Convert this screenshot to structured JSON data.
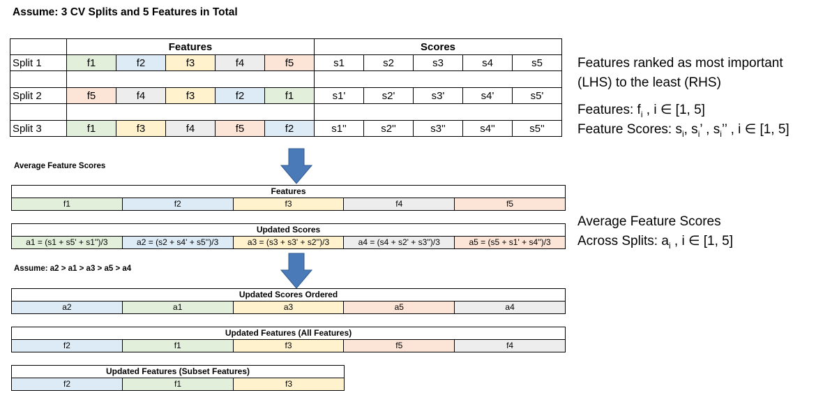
{
  "title": "Assume: 3 CV Splits and 5 Features in Total",
  "main_table": {
    "features_header": "Features",
    "scores_header": "Scores",
    "rows": [
      {
        "label": "Split 1",
        "features": [
          {
            "text": "f1",
            "color": "green"
          },
          {
            "text": "f2",
            "color": "blue"
          },
          {
            "text": "f3",
            "color": "yellow"
          },
          {
            "text": "f4",
            "color": "gray"
          },
          {
            "text": "f5",
            "color": "orange"
          }
        ],
        "scores": [
          "s1",
          "s2",
          "s3",
          "s4",
          "s5"
        ]
      },
      {
        "label": "Split 2",
        "features": [
          {
            "text": "f5",
            "color": "orange"
          },
          {
            "text": "f4",
            "color": "gray"
          },
          {
            "text": "f3",
            "color": "yellow"
          },
          {
            "text": "f2",
            "color": "blue"
          },
          {
            "text": "f1",
            "color": "green"
          }
        ],
        "scores": [
          "s1'",
          "s2'",
          "s3'",
          "s4'",
          "s5'"
        ]
      },
      {
        "label": "Split 3",
        "features": [
          {
            "text": "f1",
            "color": "green"
          },
          {
            "text": "f3",
            "color": "yellow"
          },
          {
            "text": "f4",
            "color": "gray"
          },
          {
            "text": "f5",
            "color": "orange"
          },
          {
            "text": "f2",
            "color": "blue"
          }
        ],
        "scores": [
          "s1''",
          "s2''",
          "s3''",
          "s4''",
          "s5''"
        ]
      }
    ]
  },
  "notes": {
    "ranking_line1": "Features ranked as most important",
    "ranking_line2": "(LHS) to the least (RHS)",
    "features_prefix": "Features: f",
    "features_suffix": " , i ∈ [1, 5]",
    "scores_prefix": "Feature Scores: s",
    "scores_mid1": ", s",
    "scores_mid2": "’ , s",
    "scores_suffix": "’’ , i ∈ [1, 5]",
    "sub_i": "i",
    "avg_line1": "Average Feature Scores",
    "avg_line2_prefix": "Across Splits: a",
    "avg_line2_suffix": " , i ∈ [1, 5]"
  },
  "avg_label": "Average Feature Scores",
  "assume2": "Assume: a2 > a1 > a3 > a5 > a4",
  "features_box": {
    "header": "Features",
    "cells": [
      {
        "text": "f1",
        "color": "green"
      },
      {
        "text": "f2",
        "color": "blue"
      },
      {
        "text": "f3",
        "color": "yellow"
      },
      {
        "text": "f4",
        "color": "gray"
      },
      {
        "text": "f5",
        "color": "orange"
      }
    ]
  },
  "updated_scores_box": {
    "header": "Updated Scores",
    "cells": [
      {
        "text": "a1 = (s1 + s5' + s1'')/3",
        "color": "green"
      },
      {
        "text": "a2 = (s2 + s4' + s5'')/3",
        "color": "blue"
      },
      {
        "text": "a3 = (s3 + s3' + s2'')/3",
        "color": "yellow"
      },
      {
        "text": "a4 = (s4 + s2' + s3'')/3",
        "color": "gray"
      },
      {
        "text": "a5 = (s5 + s1' + s4'')/3",
        "color": "orange"
      }
    ]
  },
  "ordered_box": {
    "header": "Updated Scores Ordered",
    "cells": [
      {
        "text": "a2",
        "color": "blue"
      },
      {
        "text": "a1",
        "color": "green"
      },
      {
        "text": "a3",
        "color": "yellow"
      },
      {
        "text": "a5",
        "color": "orange"
      },
      {
        "text": "a4",
        "color": "gray"
      }
    ]
  },
  "all_features_box": {
    "header": "Updated Features (All Features)",
    "cells": [
      {
        "text": "f2",
        "color": "blue"
      },
      {
        "text": "f1",
        "color": "green"
      },
      {
        "text": "f3",
        "color": "yellow"
      },
      {
        "text": "f5",
        "color": "orange"
      },
      {
        "text": "f4",
        "color": "gray"
      }
    ]
  },
  "subset_box": {
    "header": "Updated Features (Subset Features)",
    "cells": [
      {
        "text": "f2",
        "color": "blue"
      },
      {
        "text": "f1",
        "color": "green"
      },
      {
        "text": "f3",
        "color": "yellow"
      }
    ]
  },
  "arrow_color": "#4a7ab8",
  "arrow_stroke": "#2f5a8f"
}
